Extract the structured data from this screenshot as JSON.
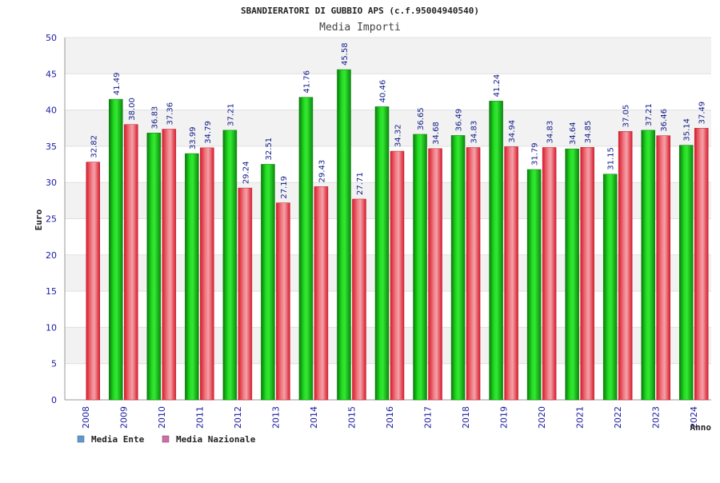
{
  "chart_data": {
    "type": "bar",
    "title": "SBANDIERATORI DI GUBBIO APS (c.f.95004940540)",
    "subtitle": "Media Importi",
    "xlabel": "Anno",
    "ylabel": "Euro",
    "ylim": [
      0,
      50
    ],
    "yticks": [
      "0",
      "5",
      "10",
      "15",
      "20",
      "25",
      "30",
      "35",
      "40",
      "45",
      "50"
    ],
    "grid": true,
    "legend_position": "bottom-left",
    "categories": [
      "2008",
      "2009",
      "2010",
      "2011",
      "2012",
      "2013",
      "2014",
      "2015",
      "2016",
      "2017",
      "2018",
      "2019",
      "2020",
      "2021",
      "2022",
      "2023",
      "2024"
    ],
    "series": [
      {
        "name": "Media Ente",
        "legend_color": "#5b9bd5",
        "bar_color": "#1fb31f",
        "values": [
          null,
          41.49,
          36.83,
          33.99,
          37.21,
          32.51,
          41.76,
          45.58,
          40.46,
          36.65,
          36.49,
          41.24,
          31.79,
          34.64,
          31.15,
          37.21,
          35.14
        ],
        "labels": [
          "",
          "41.49",
          "36.83",
          "33.99",
          "37.21",
          "32.51",
          "41.76",
          "45.58",
          "40.46",
          "36.65",
          "36.49",
          "41.24",
          "31.79",
          "34.64",
          "31.15",
          "37.21",
          "35.14"
        ]
      },
      {
        "name": "Media Nazionale",
        "legend_color": "#d46aa8",
        "bar_color": "#e8394a",
        "values": [
          32.82,
          38.0,
          37.36,
          34.79,
          29.24,
          27.19,
          29.43,
          27.71,
          34.32,
          34.68,
          34.83,
          34.94,
          34.83,
          34.85,
          37.05,
          36.46,
          37.49
        ],
        "labels": [
          "32.82",
          "38.00",
          "37.36",
          "34.79",
          "29.24",
          "27.19",
          "29.43",
          "27.71",
          "34.32",
          "34.68",
          "34.83",
          "34.94",
          "34.83",
          "34.85",
          "37.05",
          "36.46",
          "37.49"
        ]
      }
    ]
  }
}
